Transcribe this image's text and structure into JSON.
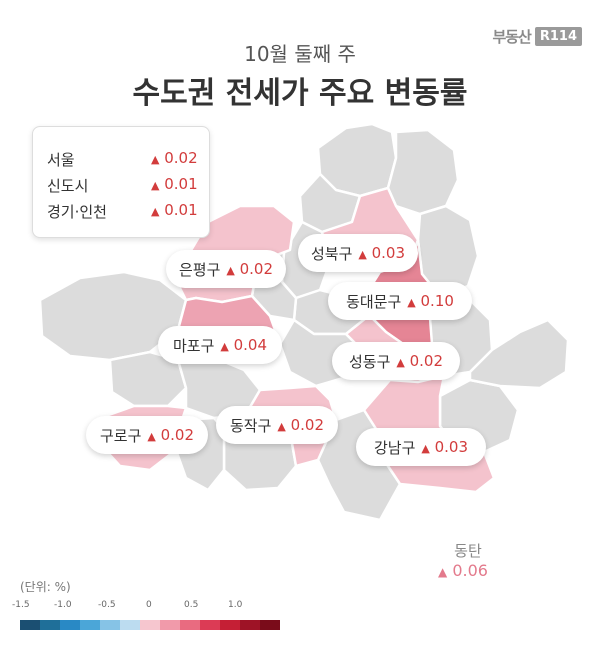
{
  "brand": {
    "text": "부동산",
    "box": "R114"
  },
  "subtitle": "10월 둘째 주",
  "title": "수도권 전세가 주요 변동률",
  "summary": [
    {
      "name": "서울",
      "value": "0.02"
    },
    {
      "name": "신도시",
      "value": "0.01"
    },
    {
      "name": "경기·인천",
      "value": "0.01"
    }
  ],
  "districts": [
    {
      "name": "은평구",
      "value": "0.02"
    },
    {
      "name": "성북구",
      "value": "0.03"
    },
    {
      "name": "동대문구",
      "value": "0.10"
    },
    {
      "name": "마포구",
      "value": "0.04"
    },
    {
      "name": "성동구",
      "value": "0.02"
    },
    {
      "name": "구로구",
      "value": "0.02"
    },
    {
      "name": "동작구",
      "value": "0.02"
    },
    {
      "name": "강남구",
      "value": "0.03"
    }
  ],
  "dongtan": {
    "name": "동탄",
    "value": "0.06"
  },
  "legend": {
    "unit": "(단위: %)",
    "ticks": [
      "-1.5",
      "-1.0",
      "-0.5",
      "0",
      "0.5",
      "1.0"
    ],
    "colors": [
      "#1b4f72",
      "#1f6f99",
      "#2989c5",
      "#4ba6d8",
      "#86c3e6",
      "#bcdcf0",
      "#f6c6cf",
      "#f19aaa",
      "#e96b80",
      "#dc3b55",
      "#c51f35",
      "#9e1326",
      "#7a0c1a"
    ]
  },
  "map_colors": {
    "base": "#dcdcdc",
    "border": "#ffffff",
    "light_pink": "#f4c3cd",
    "pink": "#eda3b2",
    "dark_pink": "#e58595"
  }
}
